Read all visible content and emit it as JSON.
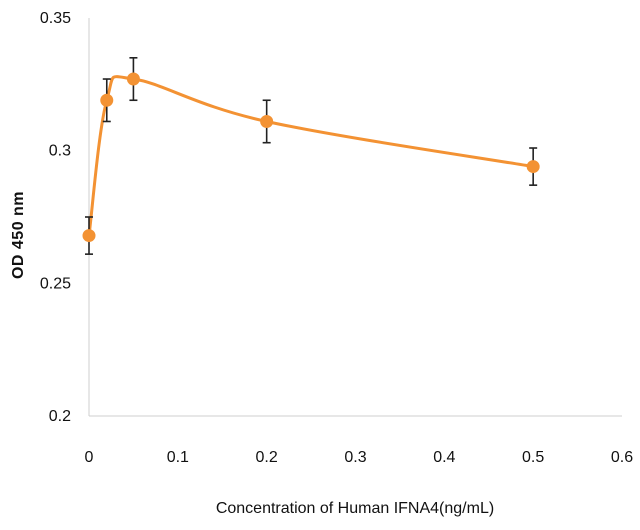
{
  "chart_data": {
    "type": "line",
    "title": "",
    "xlabel": "Concentration of Human IFNA4(ng/mL)",
    "ylabel": "OD 450 nm",
    "xlim": [
      0,
      0.6
    ],
    "ylim": [
      0.2,
      0.35
    ],
    "x_ticks": [
      0,
      0.1,
      0.2,
      0.3,
      0.4,
      0.5,
      0.6
    ],
    "x_tick_labels": [
      "0",
      "0.1",
      "0.2",
      "0.3",
      "0.4",
      "0.5",
      "0.6"
    ],
    "y_ticks": [
      0.2,
      0.25,
      0.3,
      0.35
    ],
    "y_tick_labels": [
      "0.2",
      "0.25",
      "0.3",
      "0.35"
    ],
    "grid": false,
    "legend": "none",
    "smooth": true,
    "series": [
      {
        "name": "",
        "color": "#F39233",
        "x": [
          0,
          0.02,
          0.05,
          0.2,
          0.5
        ],
        "y": [
          0.268,
          0.319,
          0.327,
          0.311,
          0.294
        ],
        "error": [
          0.007,
          0.008,
          0.008,
          0.008,
          0.007
        ]
      }
    ]
  }
}
